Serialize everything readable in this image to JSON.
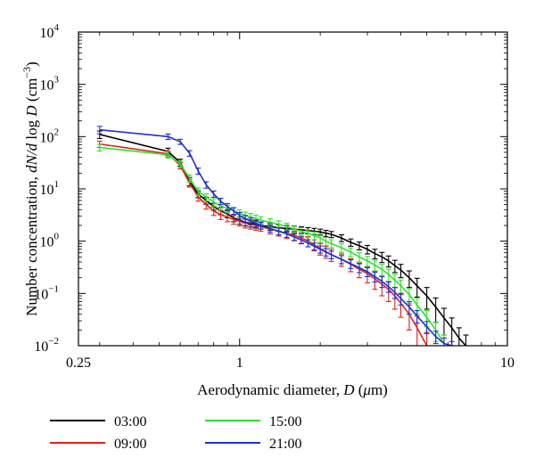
{
  "chart_data": {
    "type": "line",
    "xscale": "log",
    "yscale": "log",
    "xlim": [
      0.25,
      10
    ],
    "ylim": [
      0.01,
      10000
    ],
    "xticks": [
      {
        "value": 0.25,
        "label": "0.25"
      },
      {
        "value": 1,
        "label": "1"
      },
      {
        "value": 10,
        "label": "10"
      }
    ],
    "yticks": [
      {
        "value": 0.01,
        "base": "10",
        "exp": "−2"
      },
      {
        "value": 0.1,
        "base": "10",
        "exp": "−1"
      },
      {
        "value": 1,
        "base": "10",
        "exp": "0"
      },
      {
        "value": 10,
        "base": "10",
        "exp": "1"
      },
      {
        "value": 100,
        "base": "10",
        "exp": "2"
      },
      {
        "value": 1000,
        "base": "10",
        "exp": "3"
      },
      {
        "value": 10000,
        "base": "10",
        "exp": "4"
      }
    ],
    "xlabel": {
      "pre": "Aerodynamic diameter, ",
      "var": "D",
      "post": " (",
      "mu": "μ",
      "unit": "m)"
    },
    "ylabel": {
      "pre": "Number concentration, ",
      "var": "dN/d",
      "mid": " log ",
      "var2": "D",
      "post": " (cm",
      "sup": "−3",
      "end": ")"
    },
    "grid": false,
    "legend_position": "bottom",
    "series": [
      {
        "name": "03:00",
        "color": "#000000",
        "x": [
          0.3,
          0.54,
          0.6,
          0.65,
          0.7,
          0.75,
          0.8,
          0.85,
          0.9,
          0.95,
          1.0,
          1.05,
          1.1,
          1.15,
          1.2,
          1.3,
          1.4,
          1.5,
          1.6,
          1.7,
          1.8,
          1.9,
          2.0,
          2.1,
          2.2,
          2.4,
          2.6,
          2.8,
          3.0,
          3.2,
          3.4,
          3.6,
          3.8,
          4.0,
          4.3,
          4.6,
          5.0,
          5.4,
          5.8,
          6.2,
          6.6,
          7.0
        ],
        "y": [
          110,
          52,
          32,
          14,
          8.0,
          6.0,
          4.6,
          3.8,
          3.3,
          2.8,
          2.5,
          2.3,
          2.2,
          2.1,
          2.0,
          1.9,
          1.8,
          1.75,
          1.7,
          1.65,
          1.6,
          1.55,
          1.5,
          1.42,
          1.35,
          1.15,
          0.95,
          0.82,
          0.7,
          0.58,
          0.5,
          0.42,
          0.34,
          0.28,
          0.2,
          0.14,
          0.09,
          0.055,
          0.034,
          0.022,
          0.014,
          0.01
        ],
        "err": [
          18,
          8,
          5,
          2.5,
          1.2,
          0.9,
          0.7,
          0.6,
          0.5,
          0.45,
          0.4,
          0.35,
          0.34,
          0.32,
          0.3,
          0.28,
          0.26,
          0.25,
          0.24,
          0.23,
          0.22,
          0.21,
          0.2,
          0.19,
          0.18,
          0.17,
          0.15,
          0.14,
          0.13,
          0.12,
          0.11,
          0.1,
          0.09,
          0.08,
          0.07,
          0.055,
          0.04,
          0.027,
          0.018,
          0.012,
          0.008,
          0.006
        ]
      },
      {
        "name": "09:00",
        "color": "#e0201a",
        "x": [
          0.3,
          0.54,
          0.6,
          0.65,
          0.7,
          0.75,
          0.8,
          0.85,
          0.9,
          0.95,
          1.0,
          1.05,
          1.1,
          1.15,
          1.2,
          1.3,
          1.4,
          1.5,
          1.6,
          1.7,
          1.8,
          1.9,
          2.0,
          2.1,
          2.2,
          2.4,
          2.6,
          2.8,
          3.0,
          3.2,
          3.4,
          3.6,
          3.8,
          4.0,
          4.3,
          4.6,
          5.0
        ],
        "y": [
          72,
          47,
          28,
          13,
          7.0,
          5.0,
          3.8,
          3.2,
          2.9,
          2.6,
          2.4,
          2.2,
          2.1,
          2.0,
          1.9,
          1.7,
          1.55,
          1.4,
          1.3,
          1.15,
          1.0,
          0.85,
          0.72,
          0.63,
          0.55,
          0.45,
          0.36,
          0.29,
          0.24,
          0.19,
          0.15,
          0.12,
          0.09,
          0.065,
          0.04,
          0.022,
          0.01
        ],
        "err": [
          10,
          6,
          4,
          2.2,
          1.2,
          0.9,
          0.7,
          0.6,
          0.55,
          0.5,
          0.45,
          0.42,
          0.4,
          0.38,
          0.36,
          0.33,
          0.3,
          0.28,
          0.26,
          0.24,
          0.22,
          0.2,
          0.18,
          0.16,
          0.14,
          0.12,
          0.1,
          0.09,
          0.08,
          0.07,
          0.06,
          0.05,
          0.04,
          0.03,
          0.02,
          0.015,
          0.008
        ]
      },
      {
        "name": "15:00",
        "color": "#2fe02f",
        "x": [
          0.3,
          0.54,
          0.6,
          0.65,
          0.7,
          0.75,
          0.8,
          0.85,
          0.9,
          0.95,
          1.0,
          1.05,
          1.1,
          1.15,
          1.2,
          1.3,
          1.4,
          1.5,
          1.6,
          1.7,
          1.8,
          1.9,
          2.0,
          2.1,
          2.2,
          2.4,
          2.6,
          2.8,
          3.0,
          3.2,
          3.4,
          3.6,
          3.8,
          4.0,
          4.3,
          4.6,
          5.0,
          5.4,
          5.8
        ],
        "y": [
          62,
          45,
          30,
          16,
          9.0,
          7.0,
          5.6,
          4.7,
          4.2,
          3.8,
          3.4,
          3.1,
          2.9,
          2.7,
          2.5,
          2.3,
          2.1,
          1.9,
          1.7,
          1.55,
          1.4,
          1.28,
          1.15,
          1.0,
          0.9,
          0.75,
          0.62,
          0.5,
          0.42,
          0.35,
          0.29,
          0.23,
          0.18,
          0.14,
          0.095,
          0.06,
          0.035,
          0.02,
          0.011
        ],
        "err": [
          9,
          6,
          4,
          2.5,
          1.4,
          1.1,
          0.9,
          0.75,
          0.65,
          0.6,
          0.55,
          0.5,
          0.47,
          0.44,
          0.4,
          0.37,
          0.34,
          0.31,
          0.28,
          0.26,
          0.24,
          0.22,
          0.2,
          0.18,
          0.16,
          0.14,
          0.12,
          0.1,
          0.09,
          0.08,
          0.07,
          0.06,
          0.05,
          0.04,
          0.03,
          0.02,
          0.012,
          0.008,
          0.005
        ]
      },
      {
        "name": "21:00",
        "color": "#1f2fd0",
        "x": [
          0.3,
          0.54,
          0.6,
          0.65,
          0.7,
          0.75,
          0.8,
          0.85,
          0.9,
          0.95,
          1.0,
          1.05,
          1.1,
          1.15,
          1.2,
          1.3,
          1.4,
          1.5,
          1.6,
          1.7,
          1.8,
          1.9,
          2.0,
          2.1,
          2.2,
          2.4,
          2.6,
          2.8,
          3.0,
          3.2,
          3.4,
          3.6,
          3.8,
          4.0,
          4.3,
          4.6,
          5.0,
          5.4,
          5.8,
          6.2
        ],
        "y": [
          135,
          100,
          80,
          48,
          22,
          12,
          8.0,
          5.8,
          4.6,
          3.8,
          3.1,
          2.7,
          2.4,
          2.2,
          2.0,
          1.75,
          1.55,
          1.38,
          1.2,
          1.05,
          0.92,
          0.8,
          0.7,
          0.62,
          0.55,
          0.45,
          0.37,
          0.31,
          0.26,
          0.21,
          0.17,
          0.135,
          0.105,
          0.08,
          0.055,
          0.037,
          0.023,
          0.015,
          0.011,
          0.01
        ],
        "err": [
          22,
          12,
          9,
          6,
          3,
          1.7,
          1.1,
          0.8,
          0.65,
          0.55,
          0.45,
          0.4,
          0.36,
          0.33,
          0.3,
          0.26,
          0.23,
          0.2,
          0.18,
          0.16,
          0.14,
          0.12,
          0.11,
          0.1,
          0.09,
          0.08,
          0.07,
          0.06,
          0.05,
          0.045,
          0.04,
          0.03,
          0.025,
          0.02,
          0.015,
          0.01,
          0.006,
          0.004,
          0.003,
          0.002
        ]
      }
    ]
  }
}
